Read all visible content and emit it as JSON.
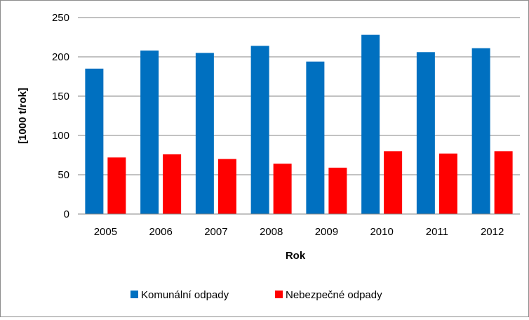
{
  "chart_data": {
    "type": "bar",
    "categories": [
      "2005",
      "2006",
      "2007",
      "2008",
      "2009",
      "2010",
      "2011",
      "2012"
    ],
    "series": [
      {
        "name": "Komunální odpady",
        "color": "#0070C0",
        "values": [
          185,
          208,
          205,
          214,
          194,
          228,
          206,
          211
        ]
      },
      {
        "name": "Nebezpečné odpady",
        "color": "#FF0000",
        "values": [
          72,
          76,
          70,
          64,
          59,
          80,
          77,
          80
        ]
      }
    ],
    "xlabel": "Rok",
    "ylabel": "[1000 t/rok]",
    "ylim": [
      0,
      250
    ],
    "yticks": [
      0,
      50,
      100,
      150,
      200,
      250
    ],
    "grid": true,
    "legend_position": "bottom"
  }
}
